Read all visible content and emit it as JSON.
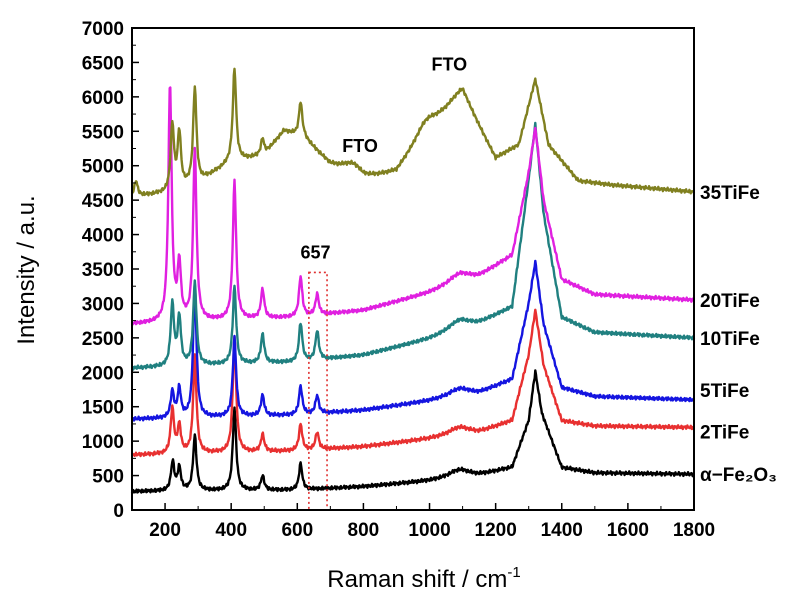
{
  "chart_data": {
    "type": "line",
    "title": "",
    "xlabel": "Raman shift / cm",
    "xlabel_superscript": "-1",
    "ylabel": "Intensity / a.u.",
    "xlim": [
      100,
      1800
    ],
    "ylim": [
      0,
      7000
    ],
    "x_ticks": [
      200,
      400,
      600,
      800,
      1000,
      1200,
      1400,
      1600,
      1800
    ],
    "y_ticks": [
      0,
      500,
      1000,
      1500,
      2000,
      2500,
      3000,
      3500,
      4000,
      4500,
      5000,
      5500,
      6000,
      6500,
      7000
    ],
    "grid": false,
    "annotations": [
      {
        "text": "FTO",
        "x": 790,
        "y": 5200
      },
      {
        "text": "FTO",
        "x": 1060,
        "y": 6380
      },
      {
        "text": "657",
        "x": 655,
        "y": 3650
      }
    ],
    "highlight_region": {
      "x": [
        635,
        690
      ],
      "y": [
        0,
        3450
      ],
      "style": "dotted",
      "color": "#e03030"
    },
    "series": [
      {
        "name": "α−Fe₂O₃",
        "color": "#000000",
        "baseline": [
          [
            100,
            270
          ],
          [
            300,
            280
          ],
          [
            600,
            290
          ],
          [
            800,
            340
          ],
          [
            1000,
            420
          ],
          [
            1150,
            500
          ],
          [
            1250,
            620
          ],
          [
            1300,
            1300
          ],
          [
            1320,
            2010
          ],
          [
            1340,
            1400
          ],
          [
            1400,
            620
          ],
          [
            1500,
            540
          ],
          [
            1800,
            520
          ]
        ],
        "peaks": [
          [
            223,
            420
          ],
          [
            243,
            330
          ],
          [
            290,
            800
          ],
          [
            410,
            1200
          ],
          [
            495,
            210
          ],
          [
            610,
            380
          ],
          [
            1090,
            120
          ]
        ]
      },
      {
        "name": "2TiFe",
        "color": "#e83030",
        "baseline": [
          [
            100,
            800
          ],
          [
            300,
            820
          ],
          [
            600,
            860
          ],
          [
            800,
            920
          ],
          [
            1000,
            1030
          ],
          [
            1150,
            1120
          ],
          [
            1250,
            1300
          ],
          [
            1300,
            2250
          ],
          [
            1320,
            2900
          ],
          [
            1345,
            2100
          ],
          [
            1400,
            1300
          ],
          [
            1500,
            1220
          ],
          [
            1800,
            1200
          ]
        ],
        "peaks": [
          [
            222,
            650
          ],
          [
            243,
            400
          ],
          [
            290,
            1400
          ],
          [
            410,
            1680
          ],
          [
            495,
            250
          ],
          [
            610,
            380
          ],
          [
            660,
            250
          ],
          [
            1090,
            120
          ]
        ]
      },
      {
        "name": "5TiFe",
        "color": "#1515e0",
        "baseline": [
          [
            100,
            1320
          ],
          [
            300,
            1340
          ],
          [
            600,
            1380
          ],
          [
            800,
            1450
          ],
          [
            1000,
            1580
          ],
          [
            1150,
            1690
          ],
          [
            1250,
            1900
          ],
          [
            1300,
            3000
          ],
          [
            1320,
            3600
          ],
          [
            1345,
            2700
          ],
          [
            1400,
            1780
          ],
          [
            1500,
            1650
          ],
          [
            1800,
            1600
          ]
        ],
        "peaks": [
          [
            222,
            380
          ],
          [
            243,
            420
          ],
          [
            290,
            1950
          ],
          [
            410,
            1140
          ],
          [
            495,
            300
          ],
          [
            610,
            410
          ],
          [
            660,
            260
          ],
          [
            1090,
            120
          ]
        ]
      },
      {
        "name": "10TiFe",
        "color": "#208080",
        "baseline": [
          [
            100,
            2060
          ],
          [
            300,
            2100
          ],
          [
            600,
            2150
          ],
          [
            800,
            2250
          ],
          [
            1000,
            2480
          ],
          [
            1150,
            2700
          ],
          [
            1250,
            2950
          ],
          [
            1300,
            4800
          ],
          [
            1320,
            5600
          ],
          [
            1345,
            4300
          ],
          [
            1400,
            2800
          ],
          [
            1500,
            2580
          ],
          [
            1800,
            2500
          ]
        ],
        "peaks": [
          [
            222,
            900
          ],
          [
            243,
            700
          ],
          [
            290,
            1200
          ],
          [
            410,
            1130
          ],
          [
            495,
            420
          ],
          [
            610,
            560
          ],
          [
            660,
            420
          ],
          [
            1090,
            150
          ]
        ]
      },
      {
        "name": "20TiFe",
        "color": "#e020e0",
        "baseline": [
          [
            100,
            2700
          ],
          [
            300,
            2740
          ],
          [
            600,
            2800
          ],
          [
            800,
            2900
          ],
          [
            1000,
            3150
          ],
          [
            1150,
            3380
          ],
          [
            1250,
            3700
          ],
          [
            1300,
            4900
          ],
          [
            1320,
            5550
          ],
          [
            1345,
            4500
          ],
          [
            1400,
            3350
          ],
          [
            1500,
            3130
          ],
          [
            1800,
            3050
          ]
        ],
        "peaks": [
          [
            215,
            3450
          ],
          [
            243,
            800
          ],
          [
            290,
            2500
          ],
          [
            410,
            2000
          ],
          [
            495,
            420
          ],
          [
            610,
            580
          ],
          [
            660,
            300
          ],
          [
            1090,
            150
          ]
        ]
      },
      {
        "name": "35TiFe",
        "color": "#808020",
        "baseline": [
          [
            100,
            4550
          ],
          [
            200,
            4600
          ],
          [
            300,
            4750
          ],
          [
            400,
            5050
          ],
          [
            500,
            5150
          ],
          [
            560,
            5500
          ],
          [
            620,
            5400
          ],
          [
            700,
            5000
          ],
          [
            800,
            4780
          ],
          [
            900,
            4900
          ],
          [
            980,
            5400
          ],
          [
            1100,
            6000
          ],
          [
            1200,
            5100
          ],
          [
            1270,
            5300
          ],
          [
            1320,
            6250
          ],
          [
            1360,
            5300
          ],
          [
            1450,
            4780
          ],
          [
            1550,
            4720
          ],
          [
            1800,
            4620
          ]
        ],
        "peaks": [
          [
            112,
            220
          ],
          [
            222,
            950
          ],
          [
            243,
            800
          ],
          [
            290,
            1400
          ],
          [
            410,
            1350
          ],
          [
            495,
            250
          ],
          [
            610,
            500
          ],
          [
            770,
            180
          ],
          [
            990,
            200
          ],
          [
            1090,
            100
          ]
        ]
      }
    ]
  }
}
